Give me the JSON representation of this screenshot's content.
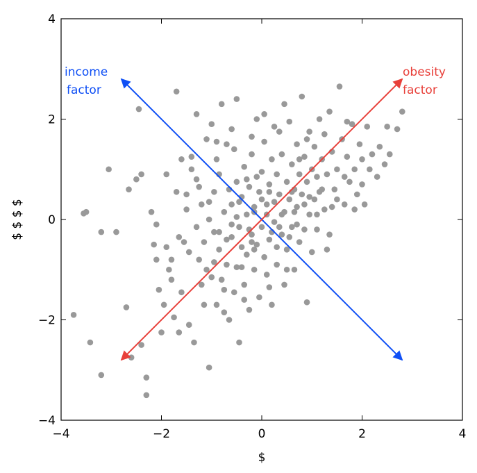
{
  "chart_data": {
    "type": "scatter",
    "title": "",
    "xlabel": "$",
    "ylabel": "$ $ $ $",
    "xlim": [
      -4,
      4
    ],
    "ylim": [
      -4,
      4
    ],
    "xticks": [
      -4,
      -2,
      0,
      2,
      4
    ],
    "yticks": [
      -4,
      -2,
      0,
      2,
      4
    ],
    "xtick_labels": [
      "−4",
      "−2",
      "0",
      "2",
      "4"
    ],
    "ytick_labels": [
      "−4",
      "−2",
      "0",
      "2",
      "4"
    ],
    "grid": false,
    "point_color": "#999999",
    "series": [
      {
        "points": [
          [
            -3.75,
            -1.9
          ],
          [
            -3.55,
            0.12
          ],
          [
            -3.5,
            0.15
          ],
          [
            -3.42,
            -2.45
          ],
          [
            -3.2,
            -3.1
          ],
          [
            -3.2,
            -0.25
          ],
          [
            -3.05,
            1.0
          ],
          [
            -2.9,
            -0.25
          ],
          [
            -2.7,
            -1.75
          ],
          [
            -2.6,
            -2.75
          ],
          [
            -2.65,
            0.6
          ],
          [
            -2.5,
            0.8
          ],
          [
            -2.4,
            0.9
          ],
          [
            -2.45,
            2.2
          ],
          [
            -2.4,
            -2.5
          ],
          [
            -2.3,
            -3.15
          ],
          [
            -2.3,
            -3.5
          ],
          [
            -2.2,
            0.15
          ],
          [
            -2.15,
            -0.5
          ],
          [
            -2.1,
            -0.1
          ],
          [
            -2.05,
            -1.4
          ],
          [
            -2.0,
            -2.25
          ],
          [
            -1.95,
            -1.7
          ],
          [
            -1.9,
            0.9
          ],
          [
            -1.85,
            -1.0
          ],
          [
            -1.8,
            -0.8
          ],
          [
            -1.8,
            -1.2
          ],
          [
            -1.75,
            -1.95
          ],
          [
            -1.7,
            2.55
          ],
          [
            -1.65,
            -2.25
          ],
          [
            -1.6,
            1.2
          ],
          [
            -1.6,
            -1.45
          ],
          [
            -1.55,
            -0.45
          ],
          [
            -1.5,
            0.5
          ],
          [
            -1.45,
            -2.1
          ],
          [
            -1.4,
            1.0
          ],
          [
            -1.4,
            1.25
          ],
          [
            -1.35,
            -2.45
          ],
          [
            -1.3,
            2.1
          ],
          [
            -1.3,
            0.8
          ],
          [
            -1.25,
            -0.8
          ],
          [
            -1.2,
            -1.3
          ],
          [
            -1.2,
            0.3
          ],
          [
            -1.15,
            -1.7
          ],
          [
            -1.1,
            1.6
          ],
          [
            -1.1,
            -1.0
          ],
          [
            -1.05,
            -2.95
          ],
          [
            -1.05,
            0.0
          ],
          [
            -1.0,
            1.9
          ],
          [
            -1.0,
            -1.15
          ],
          [
            -0.95,
            0.55
          ],
          [
            -0.95,
            -0.25
          ],
          [
            -0.9,
            -1.7
          ],
          [
            -0.9,
            1.2
          ],
          [
            -0.85,
            -0.6
          ],
          [
            -0.85,
            0.9
          ],
          [
            -0.8,
            2.3
          ],
          [
            -0.8,
            -1.2
          ],
          [
            -0.75,
            0.15
          ],
          [
            -0.75,
            -1.85
          ],
          [
            -0.7,
            1.5
          ],
          [
            -0.7,
            -0.9
          ],
          [
            -0.65,
            0.6
          ],
          [
            -0.65,
            -2.0
          ],
          [
            -0.6,
            0.3
          ],
          [
            -0.6,
            -0.35
          ],
          [
            -0.55,
            1.4
          ],
          [
            -0.55,
            -1.45
          ],
          [
            -0.5,
            2.4
          ],
          [
            -0.5,
            0.75
          ],
          [
            -0.5,
            -0.95
          ],
          [
            -0.45,
            -0.15
          ],
          [
            -0.45,
            -2.45
          ],
          [
            -0.4,
            0.45
          ],
          [
            -0.4,
            -0.55
          ],
          [
            -0.35,
            1.05
          ],
          [
            -0.35,
            -1.3
          ],
          [
            -0.3,
            0.1
          ],
          [
            -0.3,
            -0.7
          ],
          [
            -0.25,
            0.65
          ],
          [
            -0.25,
            -1.8
          ],
          [
            -0.2,
            1.3
          ],
          [
            -0.2,
            -0.3
          ],
          [
            -0.15,
            0.25
          ],
          [
            -0.15,
            -1.0
          ],
          [
            -0.1,
            2.0
          ],
          [
            -0.1,
            0.85
          ],
          [
            -0.1,
            -0.5
          ],
          [
            -0.05,
            -1.55
          ],
          [
            0.0,
            0.4
          ],
          [
            0.0,
            -0.15
          ],
          [
            0.0,
            0.95
          ],
          [
            0.05,
            -0.75
          ],
          [
            0.05,
            1.55
          ],
          [
            0.1,
            0.1
          ],
          [
            0.1,
            -1.1
          ],
          [
            0.15,
            0.7
          ],
          [
            0.15,
            -0.4
          ],
          [
            0.2,
            1.2
          ],
          [
            0.2,
            -1.7
          ],
          [
            0.25,
            0.35
          ],
          [
            0.25,
            -0.05
          ],
          [
            0.3,
            0.9
          ],
          [
            0.3,
            -0.9
          ],
          [
            0.35,
            1.75
          ],
          [
            0.35,
            0.5
          ],
          [
            0.4,
            -0.3
          ],
          [
            0.4,
            1.3
          ],
          [
            0.45,
            0.15
          ],
          [
            0.45,
            -1.3
          ],
          [
            0.5,
            0.75
          ],
          [
            0.5,
            -0.6
          ],
          [
            0.55,
            1.95
          ],
          [
            0.55,
            0.4
          ],
          [
            0.6,
            -0.15
          ],
          [
            0.6,
            1.1
          ],
          [
            0.65,
            0.6
          ],
          [
            0.65,
            -1.0
          ],
          [
            0.7,
            1.5
          ],
          [
            0.7,
            0.25
          ],
          [
            0.75,
            0.9
          ],
          [
            0.75,
            -0.45
          ],
          [
            0.8,
            2.45
          ],
          [
            0.8,
            0.5
          ],
          [
            0.85,
            1.25
          ],
          [
            0.85,
            -0.2
          ],
          [
            0.9,
            0.75
          ],
          [
            0.9,
            -1.65
          ],
          [
            0.95,
            1.75
          ],
          [
            0.95,
            0.1
          ],
          [
            1.0,
            1.0
          ],
          [
            1.0,
            -0.65
          ],
          [
            1.05,
            0.4
          ],
          [
            1.05,
            1.45
          ],
          [
            1.1,
            0.85
          ],
          [
            1.1,
            -0.2
          ],
          [
            1.15,
            2.0
          ],
          [
            1.15,
            0.55
          ],
          [
            1.2,
            1.2
          ],
          [
            1.25,
            0.2
          ],
          [
            1.25,
            1.7
          ],
          [
            1.3,
            0.9
          ],
          [
            1.35,
            -0.3
          ],
          [
            1.35,
            2.15
          ],
          [
            1.4,
            1.35
          ],
          [
            1.45,
            0.6
          ],
          [
            1.5,
            1.0
          ],
          [
            1.55,
            2.65
          ],
          [
            1.6,
            1.6
          ],
          [
            1.65,
            0.3
          ],
          [
            1.7,
            1.25
          ],
          [
            1.75,
            0.75
          ],
          [
            1.8,
            1.9
          ],
          [
            1.85,
            1.0
          ],
          [
            1.9,
            0.5
          ],
          [
            1.95,
            1.5
          ],
          [
            2.0,
            1.2
          ],
          [
            2.05,
            0.3
          ],
          [
            2.1,
            1.85
          ],
          [
            2.15,
            1.0
          ],
          [
            2.2,
            1.3
          ],
          [
            2.3,
            0.85
          ],
          [
            2.35,
            1.45
          ],
          [
            2.45,
            1.1
          ],
          [
            2.5,
            1.85
          ],
          [
            2.55,
            1.3
          ],
          [
            2.7,
            1.8
          ],
          [
            2.8,
            2.15
          ],
          [
            -0.3,
            0.8
          ],
          [
            0.2,
            -0.25
          ],
          [
            -0.15,
            -0.6
          ],
          [
            0.4,
            0.1
          ],
          [
            -0.5,
            0.05
          ],
          [
            0.6,
            0.55
          ],
          [
            -0.7,
            -0.4
          ],
          [
            0.3,
            -0.55
          ],
          [
            -0.05,
            0.55
          ],
          [
            0.1,
            0.3
          ],
          [
            -0.25,
            -0.2
          ],
          [
            0.55,
            -0.35
          ],
          [
            -0.6,
            -0.1
          ],
          [
            0.7,
            -0.1
          ],
          [
            -0.4,
            -0.95
          ],
          [
            0.85,
            0.3
          ],
          [
            -0.85,
            -0.25
          ],
          [
            0.95,
            0.45
          ],
          [
            -0.95,
            -0.85
          ],
          [
            1.1,
            0.1
          ],
          [
            -1.15,
            -0.45
          ],
          [
            1.2,
            0.6
          ],
          [
            -1.3,
            -0.15
          ],
          [
            1.4,
            0.25
          ],
          [
            -1.45,
            -0.65
          ],
          [
            1.3,
            -0.6
          ],
          [
            -0.35,
            -1.6
          ],
          [
            0.15,
            -1.35
          ],
          [
            -0.75,
            -1.4
          ],
          [
            0.5,
            -1.0
          ],
          [
            -0.2,
            1.65
          ],
          [
            0.25,
            1.85
          ],
          [
            -0.6,
            1.8
          ],
          [
            0.05,
            2.1
          ],
          [
            -0.9,
            1.55
          ],
          [
            0.45,
            2.3
          ],
          [
            -1.05,
            0.35
          ],
          [
            0.75,
            1.2
          ],
          [
            -1.25,
            0.65
          ],
          [
            0.9,
            1.6
          ],
          [
            -1.5,
            0.2
          ],
          [
            1.5,
            0.4
          ],
          [
            -1.65,
            -0.35
          ],
          [
            1.65,
            0.85
          ],
          [
            -1.9,
            -0.55
          ],
          [
            1.85,
            0.2
          ],
          [
            -2.1,
            -0.8
          ],
          [
            2.0,
            0.7
          ],
          [
            -1.7,
            0.55
          ],
          [
            1.7,
            1.95
          ],
          [
            -0.15,
            0.15
          ],
          [
            0.35,
            -0.15
          ],
          [
            -0.45,
            0.35
          ],
          [
            0.65,
            0.15
          ],
          [
            -0.2,
            -0.45
          ],
          [
            0.15,
            0.55
          ]
        ]
      }
    ],
    "annotations": [
      {
        "text": "income\nfactor",
        "color": "#0f4ff5",
        "from": [
          0,
          0
        ],
        "to": [
          -2.8,
          2.8
        ]
      },
      {
        "text": "",
        "color": "#0f4ff5",
        "from": [
          0,
          0
        ],
        "to": [
          2.8,
          -2.8
        ]
      },
      {
        "text": "obesity\nfactor",
        "color": "#e8403a",
        "from": [
          0,
          0
        ],
        "to": [
          2.8,
          2.8
        ]
      },
      {
        "text": "",
        "color": "#e8403a",
        "from": [
          0,
          0
        ],
        "to": [
          -2.8,
          -2.8
        ]
      }
    ],
    "annotation_lines": {
      "income": [
        "income",
        "factor"
      ],
      "obesity": [
        "obesity",
        "factor"
      ]
    }
  }
}
